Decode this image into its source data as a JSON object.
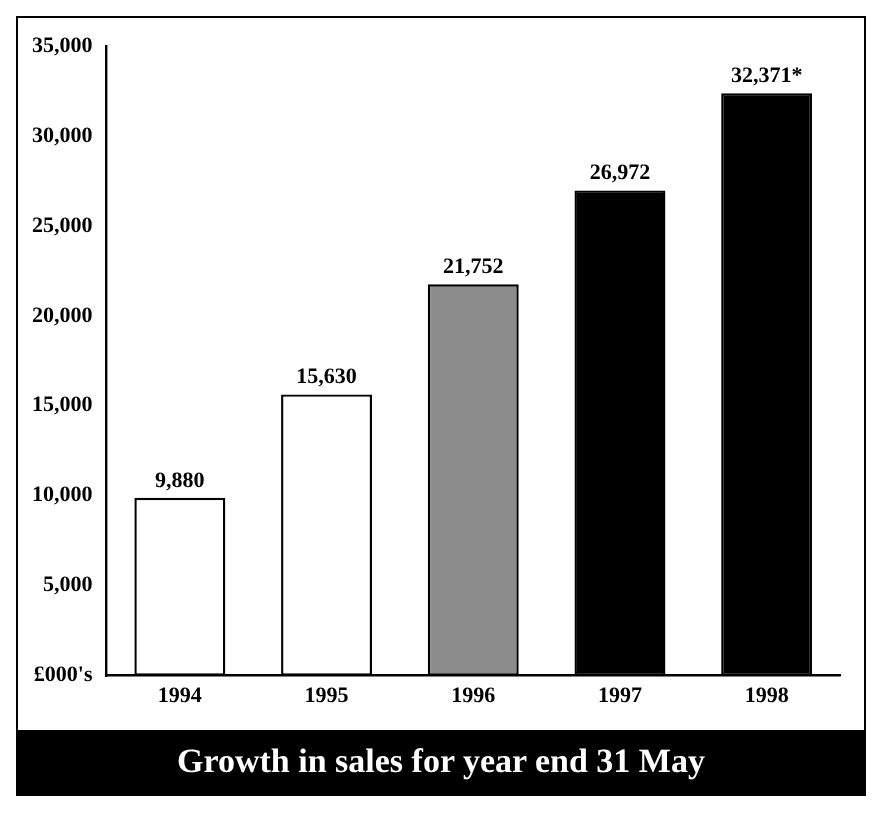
{
  "chart_data": {
    "type": "bar",
    "title": "Growth in sales for year end 31 May",
    "categories": [
      "1994",
      "1995",
      "1996",
      "1997",
      "1998"
    ],
    "values": [
      9880,
      15630,
      21752,
      26972,
      32371
    ],
    "value_labels": [
      "9,880",
      "15,630",
      "21,752",
      "26,972",
      "32,371*"
    ],
    "colors": [
      "#ffffff",
      "#ffffff",
      "#8c8c8c",
      "#000000",
      "#000000"
    ],
    "ylim": [
      0,
      35000
    ],
    "yticks": [
      {
        "value": 0,
        "label": "£000's"
      },
      {
        "value": 5000,
        "label": "5,000"
      },
      {
        "value": 10000,
        "label": "10,000"
      },
      {
        "value": 15000,
        "label": "15,000"
      },
      {
        "value": 20000,
        "label": "20,000"
      },
      {
        "value": 25000,
        "label": "25,000"
      },
      {
        "value": 30000,
        "label": "30,000"
      },
      {
        "value": 35000,
        "label": "35,000"
      }
    ],
    "grid": false,
    "legend": false
  }
}
